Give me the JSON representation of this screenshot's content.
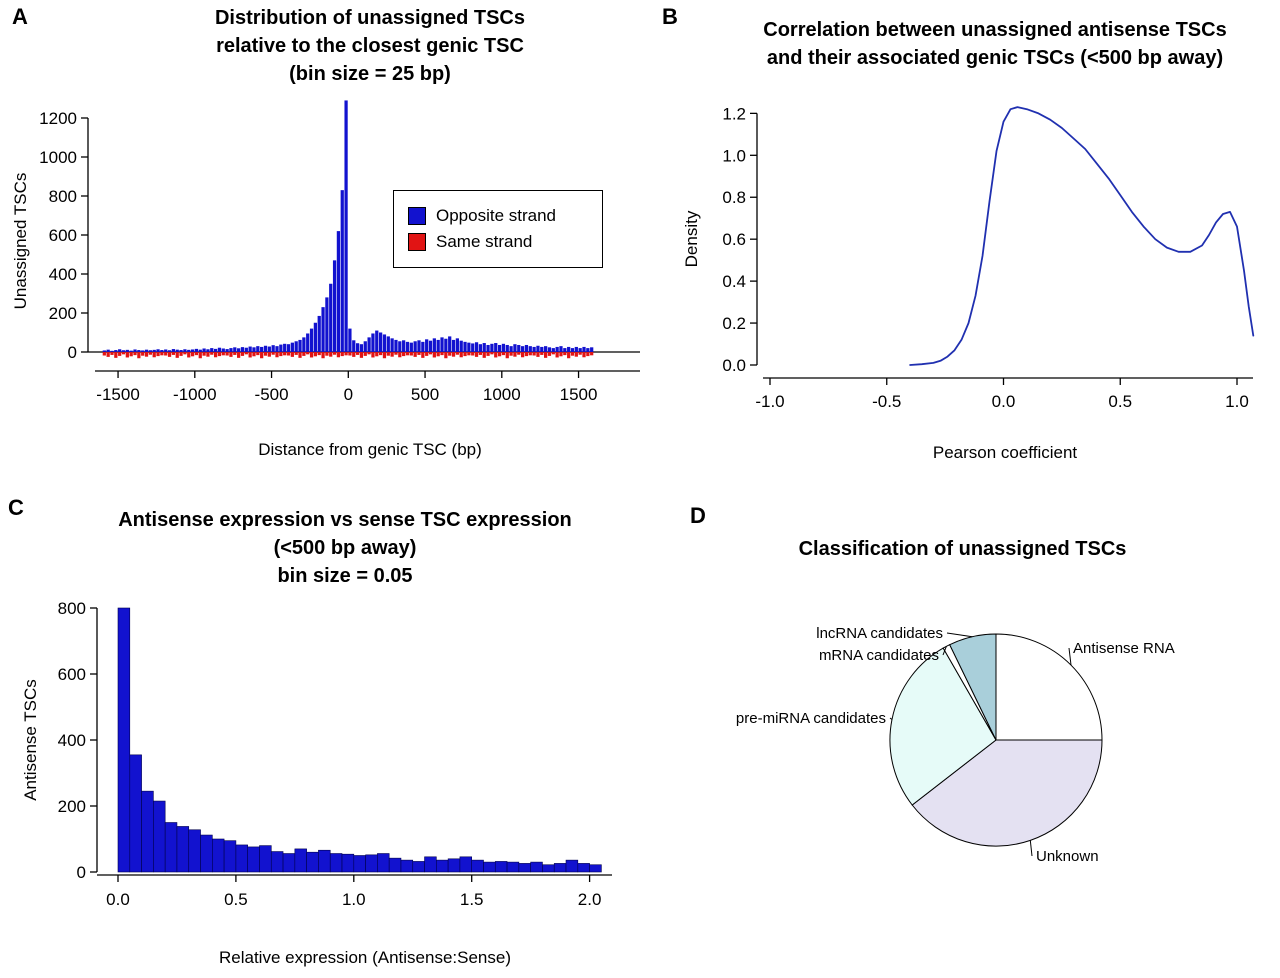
{
  "figure": {
    "background": "#ffffff"
  },
  "chart_data": [
    {
      "panel": "A",
      "type": "bar",
      "title": "Distribution of unassigned TSCs\nrelative to the closest genic TSC\n(bin size = 25 bp)",
      "xlabel": "Distance from genic TSC (bp)",
      "ylabel": "Unassigned TSCs",
      "bin_size_bp": 25,
      "x_start": -1600,
      "xlim": [
        -1650,
        1900
      ],
      "ylim": [
        -70,
        1310
      ],
      "xticks": [
        -1500,
        -1000,
        -500,
        0,
        500,
        1000,
        1500
      ],
      "xtick_labels": [
        "-1500",
        "-1000",
        "-500",
        "0",
        "500",
        "1000",
        "1500"
      ],
      "yticks": [
        0,
        200,
        400,
        600,
        800,
        1000,
        1200
      ],
      "ytick_labels": [
        "0",
        "200",
        "400",
        "600",
        "800",
        "1000",
        "1200"
      ],
      "legend": {
        "items": [
          {
            "label": "Opposite strand",
            "color": "#1212CF"
          },
          {
            "label": "Same strand",
            "color": "#E11414"
          }
        ]
      },
      "series": [
        {
          "name": "Opposite strand",
          "color": "#1212CF",
          "values": [
            8,
            12,
            6,
            10,
            14,
            9,
            11,
            7,
            13,
            10,
            8,
            12,
            9,
            11,
            14,
            10,
            13,
            9,
            15,
            12,
            10,
            14,
            11,
            13,
            16,
            12,
            18,
            14,
            20,
            16,
            22,
            18,
            15,
            20,
            24,
            19,
            25,
            22,
            28,
            24,
            30,
            26,
            32,
            28,
            35,
            30,
            38,
            42,
            40,
            48,
            55,
            62,
            75,
            95,
            120,
            150,
            185,
            230,
            280,
            350,
            470,
            620,
            830,
            1290,
            120,
            60,
            45,
            40,
            55,
            75,
            95,
            110,
            100,
            90,
            80,
            70,
            62,
            55,
            60,
            52,
            48,
            55,
            60,
            52,
            65,
            58,
            70,
            62,
            75,
            68,
            80,
            62,
            70,
            58,
            52,
            48,
            44,
            50,
            40,
            46,
            36,
            42,
            46,
            36,
            42,
            36,
            30,
            40,
            36,
            30,
            36,
            30,
            26,
            32,
            26,
            30,
            24,
            20,
            26,
            30,
            20,
            26,
            20,
            26,
            20,
            26,
            20,
            24
          ]
        },
        {
          "name": "Same strand",
          "color": "#E11414",
          "values": [
            -18,
            -25,
            -15,
            -30,
            -20,
            -12,
            -28,
            -22,
            -16,
            -32,
            -19,
            -24,
            -14,
            -27,
            -21,
            -17,
            -18,
            -25,
            -15,
            -30,
            -20,
            -12,
            -28,
            -22,
            -16,
            -32,
            -19,
            -24,
            -14,
            -27,
            -21,
            -17,
            -18,
            -25,
            -15,
            -30,
            -20,
            -12,
            -28,
            -22,
            -16,
            -32,
            -19,
            -24,
            -14,
            -27,
            -21,
            -17,
            -18,
            -25,
            -15,
            -30,
            -20,
            -12,
            -28,
            -22,
            -16,
            -32,
            -19,
            -24,
            -14,
            -27,
            -21,
            -17,
            -18,
            -25,
            -15,
            -30,
            -20,
            -12,
            -28,
            -22,
            -16,
            -32,
            -19,
            -24,
            -14,
            -27,
            -21,
            -17,
            -18,
            -25,
            -15,
            -30,
            -20,
            -12,
            -28,
            -22,
            -16,
            -32,
            -19,
            -24,
            -14,
            -27,
            -21,
            -17,
            -18,
            -25,
            -15,
            -30,
            -20,
            -12,
            -28,
            -22,
            -16,
            -32,
            -19,
            -24,
            -14,
            -27,
            -21,
            -17,
            -18,
            -25,
            -15,
            -30,
            -20,
            -12,
            -28,
            -22,
            -16,
            -32,
            -19,
            -24,
            -14,
            -27,
            -21,
            -17
          ]
        }
      ]
    },
    {
      "panel": "B",
      "type": "line",
      "title": "Correlation between unassigned antisense TSCs\nand their associated genic TSCs (<500 bp away)",
      "xlabel": "Pearson coefficient",
      "ylabel": "Density",
      "color": "#2030B0",
      "xticks": [
        -1.0,
        -0.5,
        0.0,
        0.5,
        1.0
      ],
      "xtick_labels": [
        "-1.0",
        "-0.5",
        "0.0",
        "0.5",
        "1.0"
      ],
      "yticks": [
        0,
        0.2,
        0.4,
        0.6,
        0.8,
        1.0,
        1.2
      ],
      "ytick_labels": [
        "0.0",
        "0.2",
        "0.4",
        "0.6",
        "0.8",
        "1.0",
        "1.2"
      ],
      "points": {
        "x": [
          -0.4,
          -0.35,
          -0.3,
          -0.27,
          -0.24,
          -0.21,
          -0.18,
          -0.15,
          -0.12,
          -0.09,
          -0.06,
          -0.03,
          0.0,
          0.03,
          0.06,
          0.1,
          0.15,
          0.2,
          0.25,
          0.3,
          0.35,
          0.4,
          0.45,
          0.5,
          0.55,
          0.6,
          0.65,
          0.7,
          0.75,
          0.8,
          0.85,
          0.88,
          0.91,
          0.94,
          0.97,
          1.0,
          1.03,
          1.05,
          1.07
        ],
        "y": [
          0.0,
          0.004,
          0.01,
          0.02,
          0.04,
          0.07,
          0.12,
          0.2,
          0.33,
          0.52,
          0.78,
          1.02,
          1.16,
          1.22,
          1.23,
          1.22,
          1.2,
          1.17,
          1.13,
          1.08,
          1.03,
          0.96,
          0.89,
          0.81,
          0.73,
          0.66,
          0.6,
          0.56,
          0.54,
          0.54,
          0.57,
          0.62,
          0.68,
          0.72,
          0.73,
          0.66,
          0.45,
          0.28,
          0.14
        ]
      }
    },
    {
      "panel": "C",
      "type": "bar",
      "title": "Antisense expression vs sense TSC expression\n(<500 bp away)\nbin size = 0.05",
      "xlabel": "Relative expression (Antisense:Sense)",
      "ylabel": "Antisense TSCs",
      "bin_size": 0.05,
      "x_start": 0,
      "color": "#1212CF",
      "ylim": [
        0,
        800
      ],
      "xticks": [
        0,
        0.5,
        1.0,
        1.5,
        2.0
      ],
      "xtick_labels": [
        "0.0",
        "0.5",
        "1.0",
        "1.5",
        "2.0"
      ],
      "yticks": [
        0,
        200,
        400,
        600,
        800
      ],
      "ytick_labels": [
        "0",
        "200",
        "400",
        "600",
        "800"
      ],
      "values": [
        800,
        355,
        245,
        215,
        150,
        138,
        128,
        112,
        100,
        95,
        82,
        76,
        80,
        62,
        56,
        70,
        60,
        66,
        56,
        54,
        50,
        52,
        56,
        42,
        36,
        32,
        46,
        36,
        40,
        46,
        36,
        30,
        32,
        30,
        26,
        30,
        22,
        26,
        36,
        26,
        22
      ]
    },
    {
      "panel": "D",
      "type": "pie",
      "title": "Classification of unassigned TSCs",
      "slices": [
        {
          "label": "Antisense RNA",
          "percent": 25.0,
          "color": "#FFFFFF",
          "label_pos": {
            "x": 418,
            "y": 79,
            "anchor": "start"
          }
        },
        {
          "label": "Unknown",
          "percent": 39.5,
          "color": "#E4E1F2",
          "label_pos": {
            "x": 381,
            "y": 287,
            "anchor": "start"
          }
        },
        {
          "label": "pre-miRNA candidates",
          "percent": 27.2,
          "color": "#E6FBF8",
          "label_pos": {
            "x": 231,
            "y": 149,
            "anchor": "end"
          }
        },
        {
          "label": "mRNA candidates",
          "percent": 1.1,
          "color": "#FFFFFF",
          "label_pos": {
            "x": 284,
            "y": 86,
            "anchor": "end"
          }
        },
        {
          "label": "lncRNA candidates",
          "percent": 7.2,
          "color": "#A9CFDA",
          "label_pos": {
            "x": 288,
            "y": 64,
            "anchor": "end"
          }
        }
      ]
    }
  ]
}
